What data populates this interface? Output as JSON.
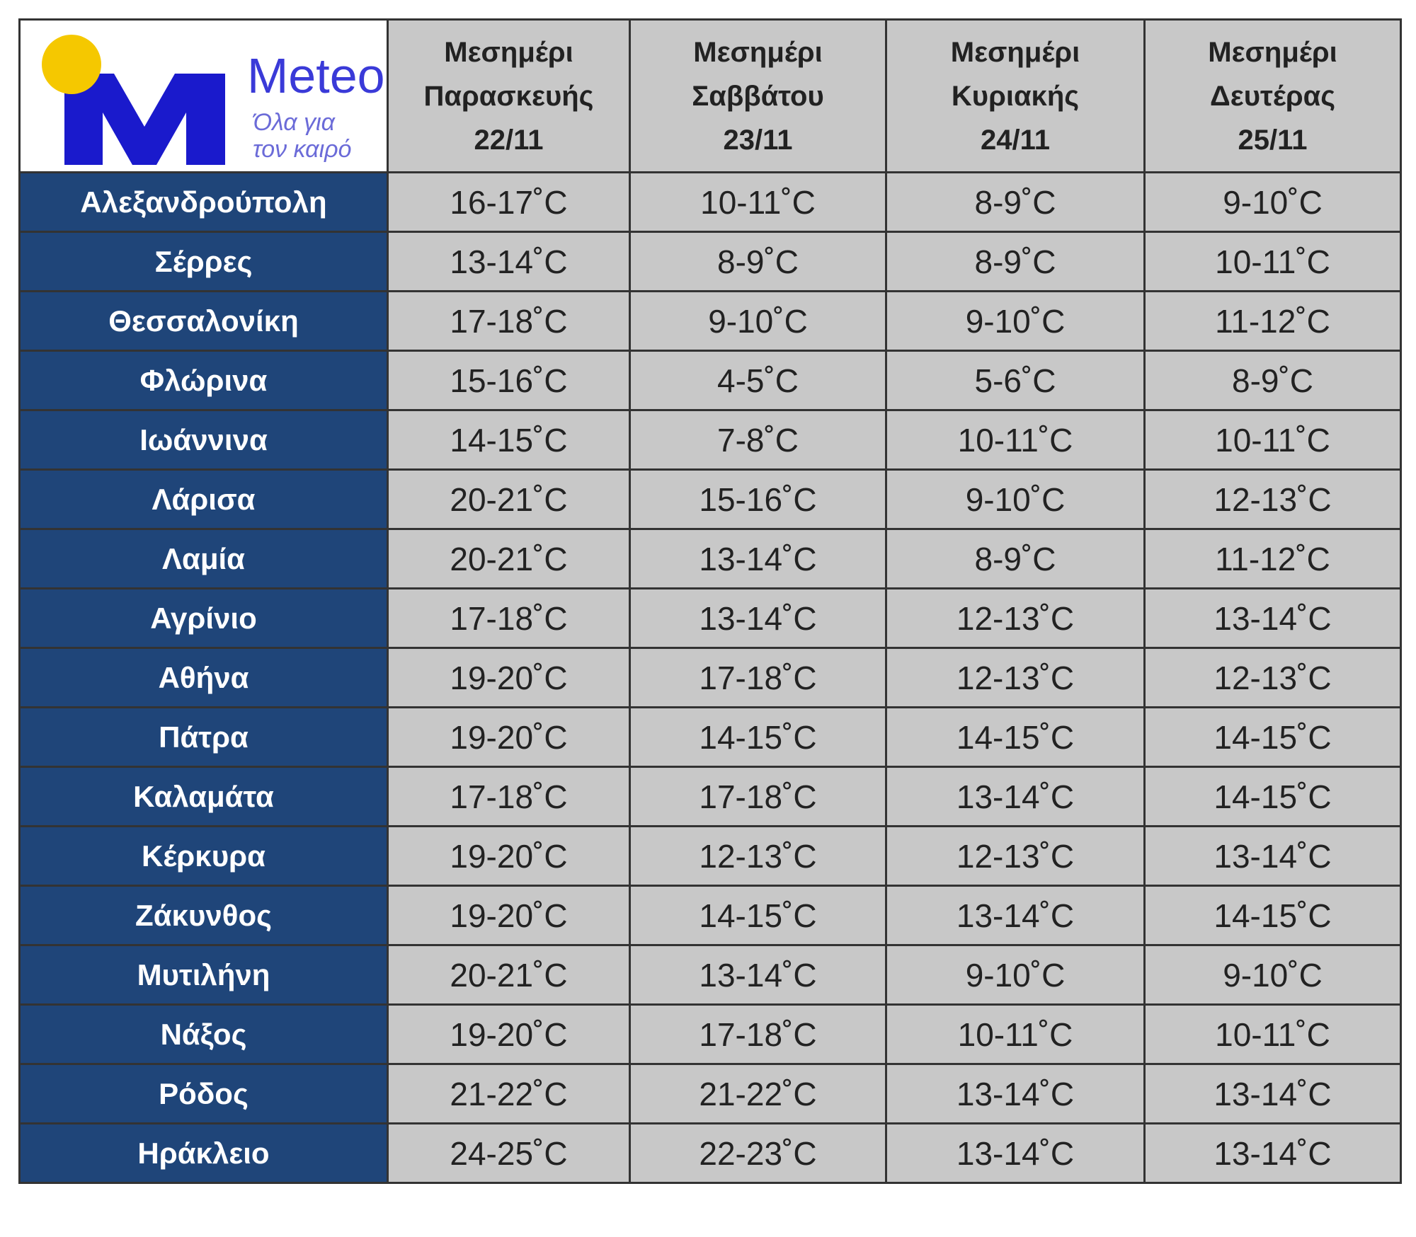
{
  "logo": {
    "name": "Meteo",
    "tagline": [
      "Όλα για",
      "τον καιρό"
    ]
  },
  "table": {
    "headers": [
      [
        "Μεσημέρι",
        "Παρασκευής",
        "22/11"
      ],
      [
        "Μεσημέρι",
        "Σαββάτου",
        "23/11"
      ],
      [
        "Μεσημέρι",
        "Κυριακής",
        "24/11"
      ],
      [
        "Μεσημέρι",
        "Δευτέρας",
        "25/11"
      ]
    ],
    "rows": [
      [
        "Αλεξανδρούπολη",
        "16-17˚C",
        "10-11˚C",
        "8-9˚C",
        "9-10˚C"
      ],
      [
        "Σέρρες",
        "13-14˚C",
        "8-9˚C",
        "8-9˚C",
        "10-11˚C"
      ],
      [
        "Θεσσαλονίκη",
        "17-18˚C",
        "9-10˚C",
        "9-10˚C",
        "11-12˚C"
      ],
      [
        "Φλώρινα",
        "15-16˚C",
        "4-5˚C",
        "5-6˚C",
        "8-9˚C"
      ],
      [
        "Ιωάννινα",
        "14-15˚C",
        "7-8˚C",
        "10-11˚C",
        "10-11˚C"
      ],
      [
        "Λάρισα",
        "20-21˚C",
        "15-16˚C",
        "9-10˚C",
        "12-13˚C"
      ],
      [
        "Λαμία",
        "20-21˚C",
        "13-14˚C",
        "8-9˚C",
        "11-12˚C"
      ],
      [
        "Αγρίνιο",
        "17-18˚C",
        "13-14˚C",
        "12-13˚C",
        "13-14˚C"
      ],
      [
        "Αθήνα",
        "19-20˚C",
        "17-18˚C",
        "12-13˚C",
        "12-13˚C"
      ],
      [
        "Πάτρα",
        "19-20˚C",
        "14-15˚C",
        "14-15˚C",
        "14-15˚C"
      ],
      [
        "Καλαμάτα",
        "17-18˚C",
        "17-18˚C",
        "13-14˚C",
        "14-15˚C"
      ],
      [
        "Κέρκυρα",
        "19-20˚C",
        "12-13˚C",
        "12-13˚C",
        "13-14˚C"
      ],
      [
        "Ζάκυνθος",
        "19-20˚C",
        "14-15˚C",
        "13-14˚C",
        "14-15˚C"
      ],
      [
        "Μυτιλήνη",
        "20-21˚C",
        "13-14˚C",
        "9-10˚C",
        "9-10˚C"
      ],
      [
        "Νάξος",
        "19-20˚C",
        "17-18˚C",
        "10-11˚C",
        "10-11˚C"
      ],
      [
        "Ρόδος",
        "21-22˚C",
        "21-22˚C",
        "13-14˚C",
        "13-14˚C"
      ],
      [
        "Ηράκλειο",
        "24-25˚C",
        "22-23˚C",
        "13-14˚C",
        "13-14˚C"
      ]
    ]
  }
}
